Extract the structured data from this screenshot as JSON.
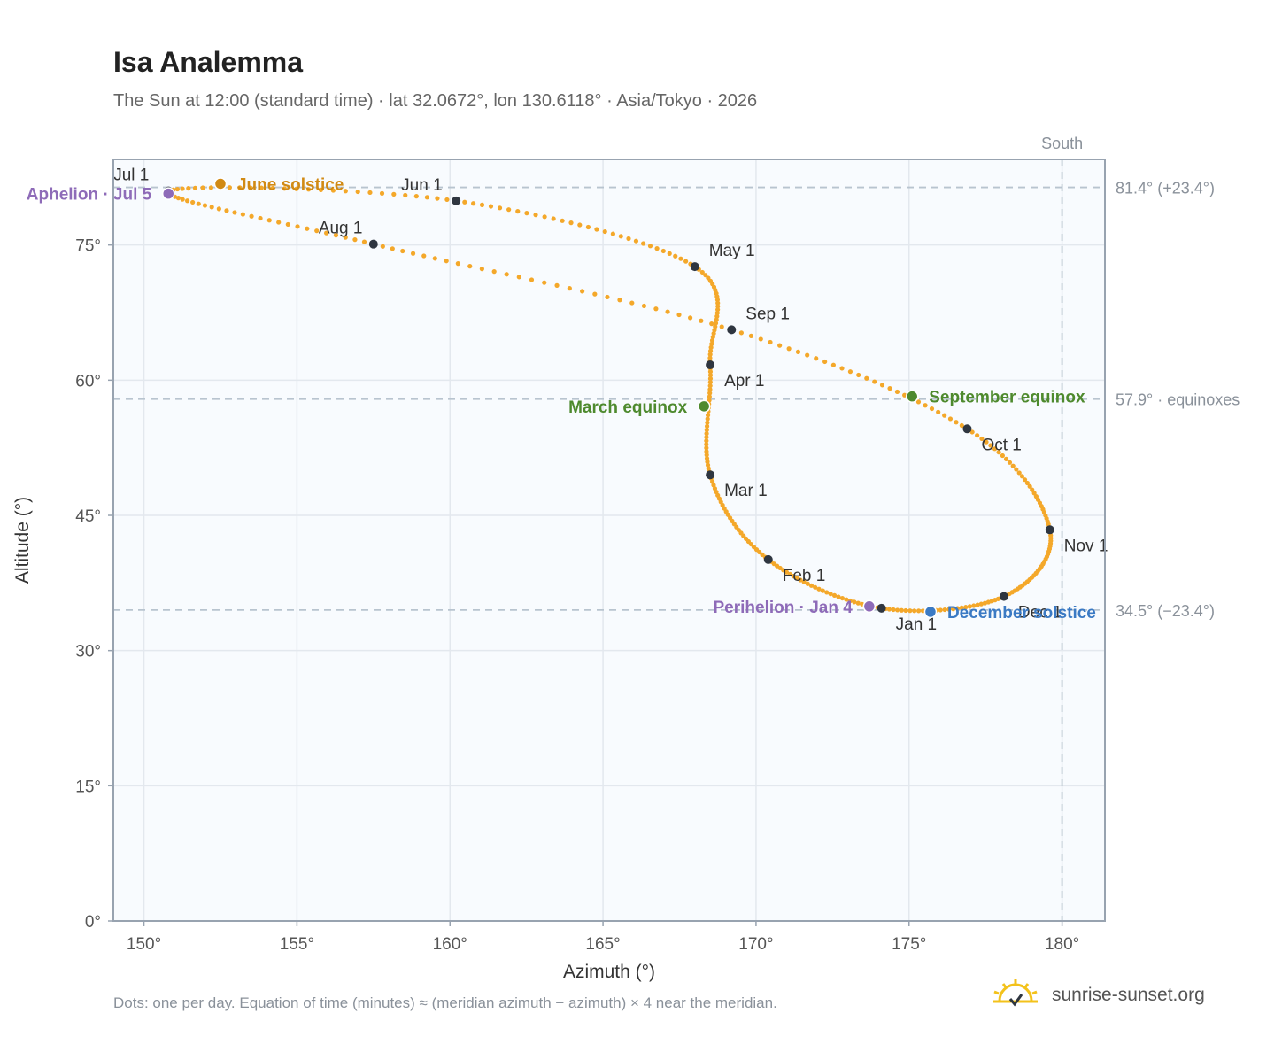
{
  "header": {
    "title": "Isa Analemma",
    "subtitle": "The Sun at 12:00 (standard time) · lat 32.0672°, lon 130.6118° · Asia/Tokyo · 2026"
  },
  "footer": {
    "note": "Dots: one per day. Equation of time (minutes) ≈ (meridian azimuth − azimuth) × 4 near the meridian.",
    "brand": "sunrise-sunset.org"
  },
  "colors": {
    "path": "#f4a82a",
    "month_marker": "#2f3640",
    "solstice_june": "#d18a14",
    "equinox": "#4e8a2e",
    "solstice_december": "#3b7ac4",
    "apsis": "#8e6bb8",
    "plot_bg": "#f8fbfe",
    "grid": "#e3e8ee",
    "reference": "#b8c4cf"
  },
  "chart_data": {
    "type": "scatter",
    "xlabel": "Azimuth (°)",
    "ylabel": "Altitude (°)",
    "xlim": [
      149,
      181.4
    ],
    "ylim": [
      0,
      84.5
    ],
    "x_ticks": [
      150,
      155,
      160,
      165,
      170,
      175,
      180
    ],
    "x_tick_labels": [
      "150°",
      "155°",
      "160°",
      "165°",
      "170°",
      "175°",
      "180°"
    ],
    "y_ticks": [
      0,
      15,
      30,
      45,
      60,
      75
    ],
    "y_tick_labels": [
      "0°",
      "15°",
      "30°",
      "45°",
      "60°",
      "75°"
    ],
    "grid": true,
    "meridian": {
      "azimuth": 180,
      "label": "South"
    },
    "reference_lines": [
      {
        "altitude": 81.4,
        "label": "81.4° (+23.4°)"
      },
      {
        "altitude": 57.9,
        "label": "57.9° · equinoxes"
      },
      {
        "altitude": 34.5,
        "label": "34.5° (−23.4°)"
      }
    ],
    "daily_path": [
      {
        "month": "Jan",
        "days": 31,
        "start": [
          174.1,
          34.7
        ],
        "end": [
          170.4,
          40.1
        ]
      },
      {
        "month": "Feb",
        "days": 28,
        "start": [
          170.4,
          40.1
        ],
        "end": [
          168.5,
          49.5
        ]
      },
      {
        "month": "Mar",
        "days": 31,
        "start": [
          168.5,
          49.5
        ],
        "end": [
          168.5,
          61.7
        ]
      },
      {
        "month": "Apr",
        "days": 30,
        "start": [
          168.5,
          61.7
        ],
        "end": [
          168.0,
          72.6
        ]
      },
      {
        "month": "May",
        "days": 31,
        "start": [
          168.0,
          72.6
        ],
        "end": [
          160.2,
          79.9
        ]
      },
      {
        "month": "Jun",
        "days": 30,
        "start": [
          160.2,
          79.9
        ],
        "end": [
          150.8,
          81.0
        ]
      },
      {
        "month": "Jul",
        "days": 31,
        "start": [
          150.8,
          81.0
        ],
        "end": [
          157.5,
          75.1
        ]
      },
      {
        "month": "Aug",
        "days": 31,
        "start": [
          157.5,
          75.1
        ],
        "end": [
          169.2,
          65.6
        ]
      },
      {
        "month": "Sep",
        "days": 30,
        "start": [
          169.2,
          65.6
        ],
        "end": [
          176.9,
          54.6
        ]
      },
      {
        "month": "Oct",
        "days": 31,
        "start": [
          176.9,
          54.6
        ],
        "end": [
          179.6,
          43.4
        ]
      },
      {
        "month": "Nov",
        "days": 30,
        "start": [
          179.6,
          43.4
        ],
        "end": [
          178.1,
          36.0
        ]
      },
      {
        "month": "Dec",
        "days": 31,
        "start": [
          178.1,
          36.0
        ],
        "end": [
          174.1,
          34.7
        ]
      }
    ],
    "month_markers": [
      {
        "label": "Jan 1",
        "azimuth": 174.1,
        "altitude": 34.7,
        "anchor": "below"
      },
      {
        "label": "Feb 1",
        "azimuth": 170.4,
        "altitude": 40.1,
        "anchor": "below-right"
      },
      {
        "label": "Mar 1",
        "azimuth": 168.5,
        "altitude": 49.5,
        "anchor": "below-right"
      },
      {
        "label": "Apr 1",
        "azimuth": 168.5,
        "altitude": 61.7,
        "anchor": "below-right"
      },
      {
        "label": "May 1",
        "azimuth": 168.0,
        "altitude": 72.6,
        "anchor": "above-right"
      },
      {
        "label": "Jun 1",
        "azimuth": 160.2,
        "altitude": 79.9,
        "anchor": "above-left"
      },
      {
        "label": "Jul 1",
        "azimuth": 150.8,
        "altitude": 81.0,
        "anchor": "above-left"
      },
      {
        "label": "Aug 1",
        "azimuth": 157.5,
        "altitude": 75.1,
        "anchor": "above-left"
      },
      {
        "label": "Sep 1",
        "azimuth": 169.2,
        "altitude": 65.6,
        "anchor": "above-right"
      },
      {
        "label": "Oct 1",
        "azimuth": 176.9,
        "altitude": 54.6,
        "anchor": "below-right"
      },
      {
        "label": "Nov 1",
        "azimuth": 179.6,
        "altitude": 43.4,
        "anchor": "below-right"
      },
      {
        "label": "Dec 1",
        "azimuth": 178.1,
        "altitude": 36.0,
        "anchor": "below-right"
      }
    ],
    "events": [
      {
        "label": "June solstice",
        "azimuth": 152.5,
        "altitude": 81.8,
        "color": "#d18a14",
        "anchor": "right"
      },
      {
        "label": "March equinox",
        "azimuth": 168.3,
        "altitude": 57.1,
        "color": "#4e8a2e",
        "anchor": "left"
      },
      {
        "label": "September equinox",
        "azimuth": 175.1,
        "altitude": 58.2,
        "color": "#4e8a2e",
        "anchor": "right"
      },
      {
        "label": "December solstice",
        "azimuth": 175.7,
        "altitude": 34.3,
        "color": "#3b7ac4",
        "anchor": "right"
      },
      {
        "label": "Aphelion · Jul 5",
        "azimuth": 150.8,
        "altitude": 80.7,
        "color": "#8e6bb8",
        "anchor": "left"
      },
      {
        "label": "Perihelion · Jan 4",
        "azimuth": 173.7,
        "altitude": 34.9,
        "color": "#8e6bb8",
        "anchor": "left"
      }
    ]
  }
}
